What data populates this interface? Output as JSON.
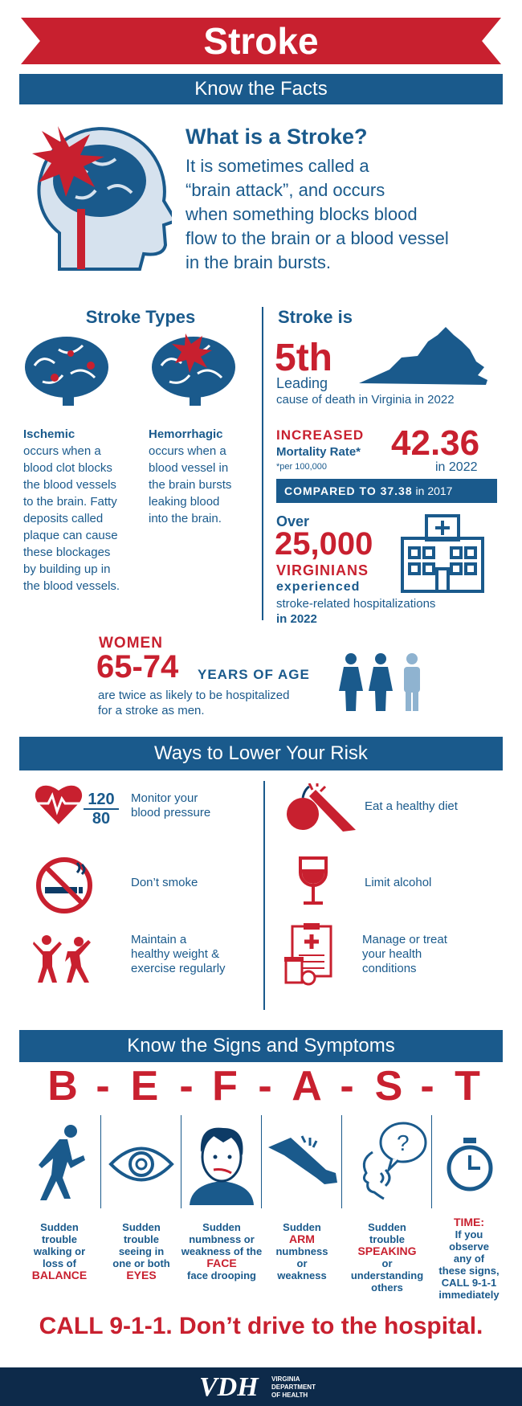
{
  "title": "Stroke",
  "subtitle": "Know the Facts",
  "what_is": {
    "heading": "What is a Stroke?",
    "line1": "It is sometimes called a",
    "line2": "“brain attack”, and occurs",
    "line3": "when something blocks blood",
    "line4": "flow to the brain or a blood vessel",
    "line5": "in the brain bursts."
  },
  "types": {
    "heading": "Stroke Types",
    "ischemic": {
      "name": "Ischemic",
      "lines": [
        "occurs when a",
        "blood clot blocks",
        "the blood vessels",
        "to the brain. Fatty",
        "deposits called",
        "plaque can cause",
        "these blockages",
        "by building up in",
        "the blood vessels."
      ]
    },
    "hemorrhagic": {
      "name": "Hemorrhagic",
      "lines": [
        "occurs when a",
        "blood vessel in",
        "the brain bursts",
        "leaking blood",
        "into the brain."
      ]
    }
  },
  "stroke_is": {
    "heading": "Stroke is",
    "rank": "5th",
    "leading": "Leading",
    "cause": "cause of death in Virginia in 2022",
    "increased": "INCREASED",
    "mortality": "Mortality Rate*",
    "per": "*per 100,000",
    "rate": "42.36",
    "rate_year": "in 2022",
    "compared": "COMPARED TO 37.38",
    "compared_year": "in 2017",
    "over": "Over",
    "count": "25,000",
    "virginians": "VIRGINIANS",
    "experienced": "experienced",
    "hosp": "stroke-related hospitalizations",
    "hosp_year": "in 2022"
  },
  "women": {
    "label": "WOMEN",
    "ages": "65-74",
    "years": "YEARS OF AGE",
    "line1": "are twice as likely to be hospitalized",
    "line2": "for a stroke as men."
  },
  "risk": {
    "heading": "Ways to Lower Your Risk",
    "bp_top": "120",
    "bp_bottom": "80",
    "items": [
      {
        "l1": "Monitor your",
        "l2": "blood pressure",
        "l3": ""
      },
      {
        "l1": "Eat a healthy diet",
        "l2": "",
        "l3": ""
      },
      {
        "l1": "Don’t smoke",
        "l2": "",
        "l3": ""
      },
      {
        "l1": "Limit alcohol",
        "l2": "",
        "l3": ""
      },
      {
        "l1": "Maintain a",
        "l2": "healthy weight &",
        "l3": "exercise regularly"
      },
      {
        "l1": "Manage or treat",
        "l2": "your health",
        "l3": "conditions"
      }
    ]
  },
  "signs": {
    "heading": "Know the Signs and Symptoms",
    "letters": [
      "B",
      "-",
      "E",
      "-",
      "F",
      "-",
      "A",
      "-",
      "S",
      "-",
      "T"
    ],
    "balance": [
      "Sudden",
      "trouble",
      "walking or",
      "loss of",
      "BALANCE"
    ],
    "eyes": [
      "Sudden",
      "trouble",
      "seeing in",
      "one or both",
      "EYES"
    ],
    "face": [
      "Sudden",
      "numbness or",
      "weakness of the",
      "FACE",
      "face drooping"
    ],
    "arm": [
      "Sudden",
      "ARM",
      "numbness",
      "or",
      "weakness"
    ],
    "speaking": [
      "Sudden",
      "trouble",
      "SPEAKING",
      "or",
      "understanding",
      "others"
    ],
    "time": [
      "TIME:",
      "If you",
      "observe",
      "any of",
      "these signs,",
      "CALL 9-1-1",
      "immediately"
    ]
  },
  "call": "CALL 9-1-1. Don’t drive to the hospital.",
  "footer": {
    "logo": "VDH",
    "line1": "VIRGINIA",
    "line2": "DEPARTMENT",
    "line3": "OF HEALTH"
  },
  "colors": {
    "red": "#c8202f",
    "blue": "#1a5a8c",
    "navy": "#0d2a4a"
  }
}
